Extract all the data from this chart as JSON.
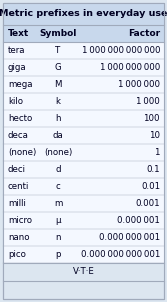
{
  "title": "Metric prefixes in everyday use",
  "headers": [
    "Text",
    "Symbol",
    "Factor"
  ],
  "rows": [
    [
      "tera",
      "T",
      "1 000 000 000 000"
    ],
    [
      "giga",
      "G",
      "1 000 000 000"
    ],
    [
      "mega",
      "M",
      "1 000 000"
    ],
    [
      "kilo",
      "k",
      "1 000"
    ],
    [
      "hecto",
      "h",
      "100"
    ],
    [
      "deca",
      "da",
      "10"
    ],
    [
      "(none)",
      "(none)",
      "1"
    ],
    [
      "deci",
      "d",
      "0.1"
    ],
    [
      "centi",
      "c",
      "0.01"
    ],
    [
      "milli",
      "m",
      "0.001"
    ],
    [
      "micro",
      "μ",
      "0.000 001"
    ],
    [
      "nano",
      "n",
      "0.000 000 001"
    ],
    [
      "pico",
      "p",
      "0.000 000 000 001"
    ]
  ],
  "footer": "V·T·E",
  "outer_bg": "#dce6f0",
  "title_bg": "#c8d8ec",
  "header_bg": "#c8d8ec",
  "row_bg": "#f4f8ff",
  "footer_bg": "#dce6f0",
  "border_color": "#a0aabb",
  "text_color": "#000022",
  "title_fontsize": 6.8,
  "header_fontsize": 6.5,
  "data_fontsize": 6.2,
  "footer_fontsize": 6.2,
  "fig_w": 1.67,
  "fig_h": 3.02,
  "dpi": 100
}
